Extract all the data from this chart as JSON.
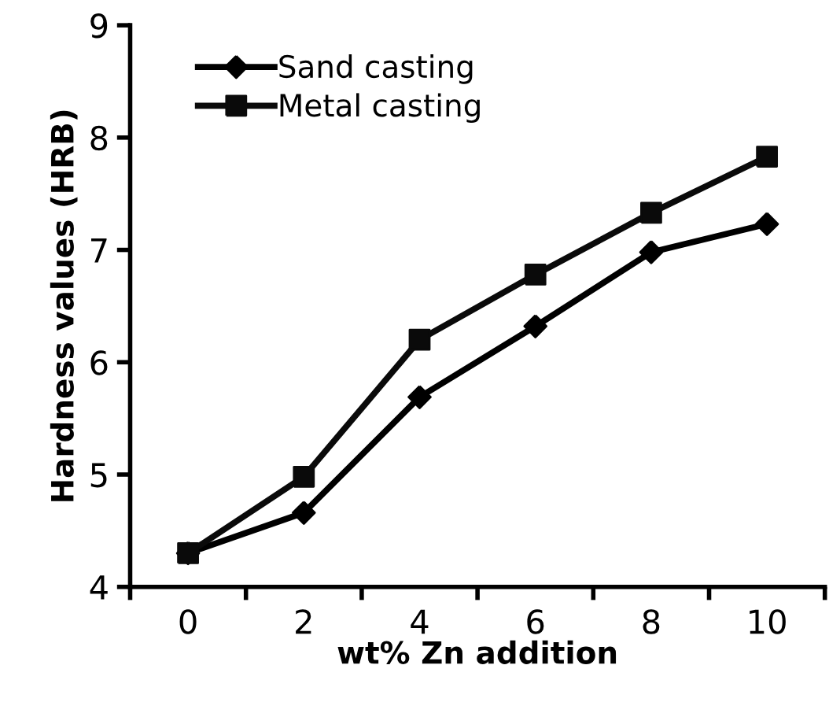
{
  "chart_data": {
    "type": "line",
    "xlabel": "wt% Zn addition",
    "ylabel": "Hardness values (HRB)",
    "categories": [
      "0",
      "2",
      "4",
      "6",
      "8",
      "10"
    ],
    "series": [
      {
        "name": "Sand casting",
        "color": "#000000",
        "marker": "diamond",
        "values": [
          4.3,
          4.66,
          5.69,
          6.32,
          6.98,
          7.23
        ]
      },
      {
        "name": "Metal casting",
        "color": "#0a0a0a",
        "marker": "square",
        "values": [
          4.3,
          4.98,
          6.2,
          6.78,
          7.33,
          7.83
        ]
      }
    ],
    "ylim": [
      4,
      9
    ],
    "yticks": [
      4,
      5,
      6,
      7,
      8,
      9
    ],
    "grid": false,
    "legend": "top left",
    "line_style": "solid"
  }
}
